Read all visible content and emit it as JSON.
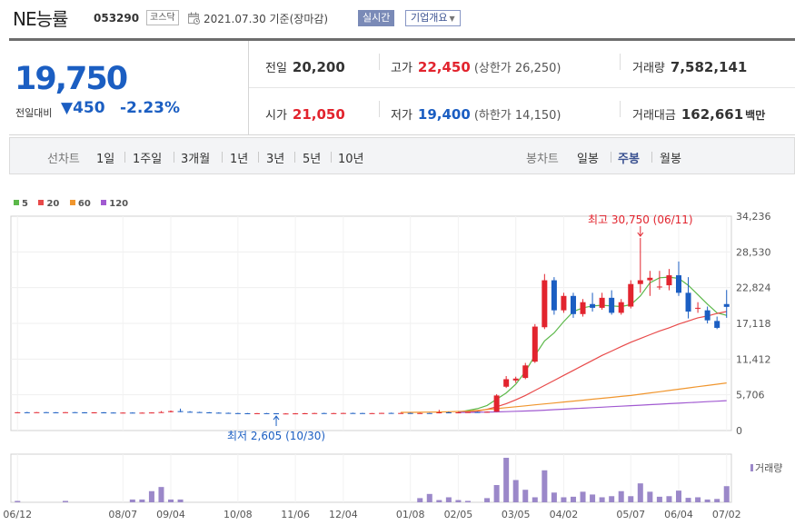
{
  "header": {
    "stock_name": "NE능률",
    "stock_code": "053290",
    "market": "코스닥",
    "date": "2021.07.30 기준(장마감)",
    "realtime_label": "실시간",
    "overview_label": "기업개요"
  },
  "price": {
    "current": "19,750",
    "change_label": "전일대비",
    "change_value": "▼450",
    "change_pct": "-2.23%"
  },
  "stats": {
    "prev_close": {
      "label": "전일",
      "value": "20,200"
    },
    "open": {
      "label": "시가",
      "value": "21,050"
    },
    "high": {
      "label": "고가",
      "value": "22,450",
      "limit": "(상한가 26,250)"
    },
    "low": {
      "label": "저가",
      "value": "19,400",
      "limit": "(하한가 14,150)"
    },
    "volume": {
      "label": "거래량",
      "value": "7,582,141"
    },
    "trade_value": {
      "label": "거래대금",
      "value": "162,661",
      "unit": "백만"
    }
  },
  "tabs": {
    "line_label": "선차트",
    "line_tabs": [
      "1일",
      "1주일",
      "3개월",
      "1년",
      "3년",
      "5년",
      "10년"
    ],
    "candle_label": "봉차트",
    "candle_tabs": [
      "일봉",
      "주봉",
      "월봉"
    ],
    "active_candle": "주봉"
  },
  "colors": {
    "up": "#e2242e",
    "down": "#1b5ec2",
    "ma5": "#5cb84a",
    "ma20": "#e84a4a",
    "ma60": "#f0962e",
    "ma120": "#a15ad1",
    "volume": "#9b88c9"
  },
  "chart_data": {
    "type": "candlestick",
    "legend": [
      "5",
      "20",
      "60",
      "120"
    ],
    "y_ticks": [
      "34,236",
      "28,530",
      "22,824",
      "17,118",
      "11,412",
      "5,706",
      "0"
    ],
    "ylim": [
      0,
      34236
    ],
    "x_ticks": [
      "06/12",
      "08/07",
      "09/04",
      "10/08",
      "11/06",
      "12/04",
      "01/08",
      "02/05",
      "03/05",
      "04/02",
      "05/07",
      "06/04",
      "07/02"
    ],
    "max_annotation": "최고 30,750 (06/11)",
    "min_annotation": "최저 2,605 (10/30)",
    "volume_label": "거래량",
    "candles": [
      [
        2900,
        2950,
        2850,
        2920
      ],
      [
        2920,
        2980,
        2880,
        2900
      ],
      [
        2900,
        2950,
        2850,
        2930
      ],
      [
        2930,
        2970,
        2890,
        2910
      ],
      [
        2910,
        2940,
        2870,
        2890
      ],
      [
        2890,
        2950,
        2860,
        2930
      ],
      [
        2930,
        2960,
        2880,
        2900
      ],
      [
        2900,
        2940,
        2860,
        2880
      ],
      [
        2880,
        2920,
        2850,
        2900
      ],
      [
        2900,
        2950,
        2860,
        2870
      ],
      [
        2870,
        2900,
        2820,
        2840
      ],
      [
        2840,
        2880,
        2800,
        2860
      ],
      [
        2860,
        2900,
        2820,
        2830
      ],
      [
        2830,
        2880,
        2800,
        2850
      ],
      [
        2850,
        2900,
        2810,
        2880
      ],
      [
        2880,
        3100,
        2840,
        2950
      ],
      [
        2950,
        3200,
        2900,
        3100
      ],
      [
        3100,
        3500,
        2950,
        3000
      ],
      [
        3000,
        3100,
        2900,
        2950
      ],
      [
        2950,
        3000,
        2850,
        2900
      ],
      [
        2900,
        2950,
        2800,
        2850
      ],
      [
        2850,
        2900,
        2780,
        2820
      ],
      [
        2820,
        2860,
        2750,
        2780
      ],
      [
        2780,
        2820,
        2700,
        2760
      ],
      [
        2760,
        2800,
        2700,
        2740
      ],
      [
        2740,
        2790,
        2700,
        2770
      ],
      [
        2770,
        2800,
        2720,
        2750
      ],
      [
        2750,
        2780,
        2605,
        2700
      ],
      [
        2700,
        2750,
        2650,
        2720
      ],
      [
        2720,
        2780,
        2680,
        2740
      ],
      [
        2740,
        2800,
        2700,
        2760
      ],
      [
        2760,
        2820,
        2720,
        2790
      ],
      [
        2790,
        2840,
        2750,
        2770
      ],
      [
        2770,
        2810,
        2730,
        2780
      ],
      [
        2780,
        2830,
        2740,
        2800
      ],
      [
        2800,
        2850,
        2760,
        2790
      ],
      [
        2790,
        2830,
        2740,
        2760
      ],
      [
        2760,
        2800,
        2720,
        2780
      ],
      [
        2780,
        2830,
        2740,
        2810
      ],
      [
        2810,
        2860,
        2770,
        2790
      ],
      [
        2790,
        2840,
        2750,
        2800
      ],
      [
        2800,
        2850,
        2760,
        2780
      ],
      [
        2780,
        2820,
        2740,
        2790
      ],
      [
        2790,
        2830,
        2750,
        2770
      ],
      [
        2770,
        3300,
        2740,
        2900
      ],
      [
        2900,
        3000,
        2800,
        2850
      ],
      [
        2850,
        2950,
        2800,
        2900
      ],
      [
        2900,
        2980,
        2850,
        2950
      ],
      [
        2950,
        3000,
        2880,
        2920
      ],
      [
        2920,
        3050,
        2880,
        3000
      ],
      [
        3000,
        5800,
        2980,
        5600
      ],
      [
        7000,
        8700,
        6800,
        8200
      ],
      [
        8000,
        8600,
        7600,
        8300
      ],
      [
        8400,
        10800,
        8200,
        10400
      ],
      [
        11000,
        17000,
        10800,
        16600
      ],
      [
        16500,
        25000,
        16200,
        24000
      ],
      [
        24000,
        24500,
        18500,
        19200
      ],
      [
        19200,
        22000,
        18800,
        21500
      ],
      [
        21500,
        22000,
        18000,
        18600
      ],
      [
        18600,
        21000,
        18200,
        20500
      ],
      [
        20200,
        22000,
        19000,
        19600
      ],
      [
        19600,
        22000,
        19300,
        21200
      ],
      [
        21200,
        22400,
        18500,
        18800
      ],
      [
        18800,
        21000,
        18500,
        20500
      ],
      [
        19800,
        24000,
        19500,
        23400
      ],
      [
        23400,
        30750,
        22000,
        24000
      ],
      [
        24000,
        25500,
        21500,
        24400
      ],
      [
        23000,
        25500,
        22500,
        23000
      ],
      [
        23200,
        25800,
        22400,
        24800
      ],
      [
        24800,
        27000,
        21500,
        22000
      ],
      [
        22000,
        24500,
        17900,
        19000
      ],
      [
        19500,
        20500,
        18800,
        19600
      ],
      [
        19200,
        19800,
        17100,
        17600
      ],
      [
        17500,
        18200,
        16200,
        16400
      ],
      [
        20200,
        22450,
        18000,
        19750
      ]
    ],
    "ma": {
      "5": {
        "start": 46,
        "values": [
          2900,
          3200,
          3500,
          4000,
          5000,
          6000,
          7400,
          9400,
          12000,
          14300,
          15600,
          17400,
          19000,
          19600,
          19900,
          20000,
          19900,
          19800,
          20100,
          21500,
          23600,
          24400,
          24500,
          24300,
          23200,
          21700,
          20200,
          18800,
          18400
        ]
      },
      "20": {
        "start": 46,
        "values": [
          2900,
          3000,
          3100,
          3400,
          3800,
          4300,
          4900,
          5600,
          6400,
          7200,
          8000,
          8800,
          9600,
          10400,
          11200,
          12000,
          12700,
          13400,
          14100,
          14700,
          15300,
          15900,
          16400,
          17000,
          17500,
          18000,
          18300,
          18700,
          19000
        ]
      },
      "60": {
        "start": 40,
        "values": [
          2900,
          2900,
          2920,
          2940,
          2960,
          3000,
          3050,
          3100,
          3200,
          3350,
          3500,
          3650,
          3800,
          3950,
          4100,
          4250,
          4400,
          4550,
          4700,
          4850,
          5000,
          5150,
          5300,
          5450,
          5600,
          5800,
          6000,
          6200,
          6400,
          6600,
          6800,
          7000,
          7200,
          7400,
          7600
        ]
      },
      "120": {
        "start": 46,
        "values": [
          2900,
          2900,
          2920,
          2950,
          2980,
          3020,
          3070,
          3120,
          3170,
          3250,
          3330,
          3410,
          3490,
          3570,
          3650,
          3730,
          3810,
          3890,
          3970,
          4050,
          4130,
          4210,
          4290,
          4370,
          4450,
          4530,
          4610,
          4690,
          4770
        ]
      }
    },
    "volumes": [
      5,
      0,
      0,
      0,
      0,
      5,
      0,
      0,
      0,
      0,
      0,
      0,
      10,
      10,
      40,
      55,
      10,
      10,
      0,
      0,
      0,
      0,
      0,
      0,
      0,
      0,
      0,
      0,
      0,
      0,
      0,
      0,
      0,
      0,
      0,
      0,
      0,
      0,
      0,
      0,
      0,
      0,
      15,
      30,
      8,
      18,
      8,
      5,
      0,
      15,
      62,
      160,
      80,
      45,
      18,
      115,
      35,
      18,
      20,
      38,
      28,
      18,
      22,
      40,
      22,
      68,
      38,
      20,
      22,
      42,
      16,
      18,
      10,
      12,
      58
    ]
  }
}
